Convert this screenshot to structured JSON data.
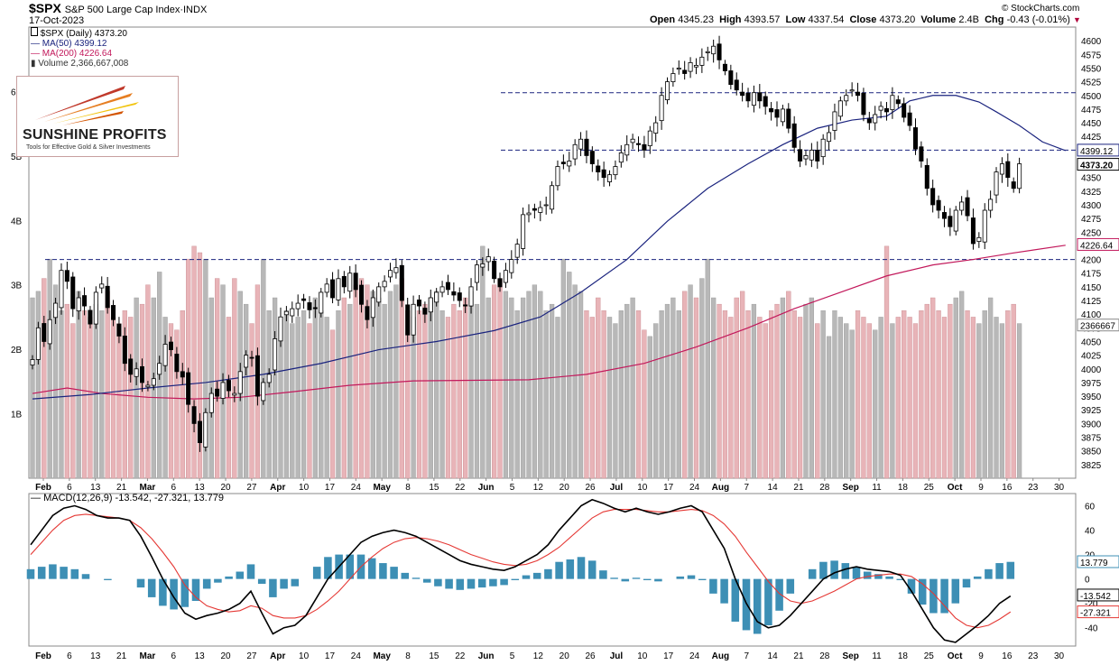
{
  "header": {
    "symbol": "$SPX",
    "name": "S&P 500 Large Cap Index",
    "exchange": "INDX",
    "date": "17-Oct-2023",
    "copyright": "© StockCharts.com",
    "open_label": "Open",
    "open": "4345.23",
    "high_label": "High",
    "high": "4393.57",
    "low_label": "Low",
    "low": "4337.54",
    "close_label": "Close",
    "close": "4373.20",
    "volume_label": "Volume",
    "volume": "2.4B",
    "chg_label": "Chg",
    "chg": "-0.43 (-0.01%)"
  },
  "legend": {
    "price": "$SPX (Daily) 4373.20",
    "ma50": "MA(50) 4399.12",
    "ma200": "MA(200) 4226.64",
    "volume": "Volume 2,366,667,008",
    "macd": "MACD(12,26,9) -13.542, -27.321, 13.779"
  },
  "logo": {
    "name": "SUNSHINE PROFITS",
    "tagline": "Tools for Effective Gold & Silver Investments"
  },
  "colors": {
    "up": "#ffffff",
    "down": "#000000",
    "ma50": "#1a237e",
    "ma200": "#c2185b",
    "vol_up": "#b8b8b8",
    "vol_down": "#e8b4b8",
    "macd_line": "#000000",
    "signal_line": "#e53935",
    "histogram": "#3d8fb5",
    "hline": "#1a237e"
  },
  "chart_data": [
    {
      "type": "candlestick",
      "title": "$SPX S&P 500 Large Cap Index INDX",
      "ylim": [
        3800,
        4625
      ],
      "y_ticks": [
        3825,
        3850,
        3875,
        3900,
        3925,
        3950,
        3975,
        4000,
        4025,
        4050,
        4075,
        4100,
        4125,
        4150,
        4175,
        4200,
        4225,
        4250,
        4275,
        4300,
        4325,
        4350,
        4375,
        4400,
        4425,
        4450,
        4475,
        4500,
        4525,
        4550,
        4575,
        4600
      ],
      "x_labels": [
        "Feb",
        "6",
        "13",
        "21",
        "Mar",
        "6",
        "13",
        "20",
        "27",
        "Apr",
        "10",
        "17",
        "24",
        "May",
        "8",
        "15",
        "22",
        "Jun",
        "5",
        "12",
        "20",
        "26",
        "Jul",
        "10",
        "17",
        "24",
        "Aug",
        "7",
        "14",
        "21",
        "28",
        "Sep",
        "11",
        "18",
        "25",
        "Oct",
        "9",
        "16",
        "23",
        "30"
      ],
      "closes": [
        4017,
        4075,
        4050,
        4090,
        4120,
        4180,
        4160,
        4110,
        4130,
        4115,
        4082,
        4140,
        4155,
        4112,
        4090,
        4060,
        4010,
        3990,
        4000,
        3975,
        3970,
        3982,
        4010,
        4045,
        4035,
        3995,
        3985,
        3935,
        3900,
        3865,
        3920,
        3955,
        3950,
        3975,
        3960,
        3955,
        3995,
        4025,
        4020,
        3950,
        3975,
        3990,
        4055,
        4095,
        4105,
        4110,
        4120,
        4125,
        4108,
        4110,
        4140,
        4155,
        4130,
        4165,
        4150,
        4175,
        4145,
        4118,
        4090,
        4130,
        4150,
        4160,
        4180,
        4185,
        4125,
        4062,
        4118,
        4115,
        4100,
        4130,
        4140,
        4150,
        4145,
        4135,
        4125,
        4115,
        4150,
        4190,
        4192,
        4205,
        4165,
        4150,
        4180,
        4200,
        4228,
        4282,
        4285,
        4290,
        4295,
        4300,
        4335,
        4370,
        4375,
        4380,
        4410,
        4420,
        4390,
        4375,
        4360,
        4350,
        4355,
        4370,
        4395,
        4410,
        4420,
        4410,
        4400,
        4435,
        4450,
        4500,
        4525,
        4540,
        4550,
        4540,
        4560,
        4555,
        4570,
        4580,
        4590,
        4565,
        4545,
        4520,
        4510,
        4500,
        4490,
        4505,
        4490,
        4480,
        4470,
        4460,
        4475,
        4440,
        4405,
        4380,
        4390,
        4400,
        4380,
        4420,
        4432,
        4470,
        4490,
        4500,
        4510,
        4500,
        4465,
        4450,
        4465,
        4480,
        4470,
        4500,
        4485,
        4460,
        4445,
        4402,
        4380,
        4330,
        4300,
        4290,
        4275,
        4260,
        4290,
        4305,
        4280,
        4229,
        4240,
        4290,
        4310,
        4360,
        4375,
        4350,
        4330,
        4375
      ],
      "volume_ylim": [
        0,
        7000000000
      ],
      "volume_ticks": [
        "1B",
        "2B",
        "3B",
        "4B",
        "5B",
        "6B"
      ],
      "volume_last": "2366667",
      "volumes_billion": [
        2.8,
        2.9,
        3.1,
        3.4,
        3.0,
        2.6,
        2.7,
        2.4,
        2.9,
        2.6,
        2.5,
        2.7,
        2.6,
        2.9,
        2.5,
        2.4,
        2.6,
        2.5,
        2.8,
        2.7,
        3.0,
        2.8,
        3.2,
        2.5,
        2.4,
        2.3,
        2.6,
        3.4,
        3.6,
        3.5,
        3.4,
        2.8,
        3.1,
        3.0,
        2.5,
        3.1,
        2.9,
        2.7,
        2.4,
        3.0,
        3.4,
        2.6,
        2.8,
        2.5,
        2.6,
        2.4,
        2.5,
        2.6,
        2.4,
        2.8,
        2.6,
        2.5,
        2.3,
        2.6,
        2.8,
        2.7,
        3.0,
        3.1,
        3.0,
        2.9,
        2.8,
        2.7,
        2.9,
        3.0,
        3.1,
        2.6,
        2.5,
        2.6,
        2.7,
        2.8,
        2.9,
        2.6,
        2.5,
        2.7,
        2.6,
        2.8,
        2.9,
        2.7,
        3.6,
        2.8,
        3.0,
        3.1,
        2.9,
        2.8,
        2.6,
        2.8,
        2.9,
        3.0,
        2.9,
        2.6,
        2.7,
        2.5,
        3.4,
        3.2,
        3.0,
        2.9,
        2.6,
        2.5,
        2.8,
        2.6,
        2.5,
        2.4,
        2.6,
        2.7,
        2.8,
        2.6,
        2.3,
        2.2,
        2.4,
        2.6,
        2.7,
        2.8,
        2.6,
        2.9,
        3.0,
        2.8,
        3.1,
        3.4,
        2.8,
        2.7,
        2.6,
        2.5,
        2.8,
        2.9,
        2.6,
        2.7,
        2.5,
        2.4,
        2.6,
        2.7,
        2.8,
        2.9,
        2.6,
        2.5,
        2.7,
        2.8,
        2.4,
        2.6,
        2.2,
        2.6,
        2.5,
        2.4,
        2.3,
        2.6,
        2.5,
        2.4,
        2.3,
        2.5,
        3.6,
        2.4,
        2.5,
        2.6,
        2.5,
        2.4,
        2.6,
        2.7,
        2.8,
        2.6,
        2.5,
        2.7,
        2.8,
        2.9,
        2.6,
        2.5,
        2.4,
        2.6,
        2.8,
        2.5,
        2.4,
        2.6,
        2.7,
        2.4
      ],
      "ma50_points": [
        [
          0,
          3945
        ],
        [
          10,
          3953
        ],
        [
          20,
          3965
        ],
        [
          30,
          3975
        ],
        [
          40,
          3990
        ],
        [
          50,
          4010
        ],
        [
          60,
          4035
        ],
        [
          70,
          4050
        ],
        [
          80,
          4070
        ],
        [
          88,
          4095
        ],
        [
          95,
          4140
        ],
        [
          103,
          4200
        ],
        [
          110,
          4270
        ],
        [
          117,
          4330
        ],
        [
          124,
          4375
        ],
        [
          130,
          4410
        ],
        [
          136,
          4440
        ],
        [
          142,
          4455
        ],
        [
          148,
          4462
        ],
        [
          152,
          4490
        ],
        [
          156,
          4500
        ],
        [
          160,
          4500
        ],
        [
          164,
          4488
        ],
        [
          167,
          4470
        ],
        [
          171,
          4445
        ],
        [
          175,
          4415
        ],
        [
          179,
          4399
        ]
      ],
      "ma200_points": [
        [
          0,
          3955
        ],
        [
          6,
          3965
        ],
        [
          12,
          3955
        ],
        [
          20,
          3948
        ],
        [
          28,
          3945
        ],
        [
          36,
          3948
        ],
        [
          45,
          3958
        ],
        [
          55,
          3970
        ],
        [
          66,
          3978
        ],
        [
          76,
          3979
        ],
        [
          86,
          3980
        ],
        [
          96,
          3990
        ],
        [
          106,
          4010
        ],
        [
          115,
          4040
        ],
        [
          124,
          4075
        ],
        [
          132,
          4110
        ],
        [
          140,
          4140
        ],
        [
          148,
          4170
        ],
        [
          156,
          4190
        ],
        [
          163,
          4200
        ],
        [
          170,
          4212
        ],
        [
          179,
          4226
        ]
      ],
      "hlines": [
        4505,
        4400,
        4200
      ],
      "price_labels": [
        "4399.12",
        "4373.20",
        "4226.64"
      ]
    },
    {
      "type": "macd",
      "title": "MACD(12,26,9) -13.542, -27.321, 13.779",
      "ylim": [
        -55,
        70
      ],
      "y_ticks": [
        -40,
        -20,
        0,
        20,
        40,
        60
      ],
      "macd_line": [
        28,
        40,
        52,
        58,
        60,
        57,
        52,
        50,
        50,
        48,
        35,
        18,
        0,
        -15,
        -28,
        -33,
        -30,
        -28,
        -25,
        -20,
        -10,
        -28,
        -45,
        -40,
        -38,
        -30,
        -15,
        0,
        10,
        20,
        30,
        35,
        38,
        40,
        38,
        35,
        30,
        25,
        20,
        15,
        12,
        10,
        8,
        7,
        10,
        15,
        20,
        28,
        40,
        50,
        60,
        65,
        62,
        58,
        55,
        58,
        55,
        53,
        55,
        58,
        60,
        55,
        40,
        25,
        0,
        -20,
        -35,
        -40,
        -38,
        -30,
        -20,
        -10,
        0,
        5,
        8,
        10,
        8,
        7,
        6,
        3,
        -10,
        -25,
        -40,
        -50,
        -52,
        -45,
        -38,
        -30,
        -20,
        -14
      ],
      "signal_line": [
        20,
        30,
        40,
        48,
        52,
        53,
        52,
        51,
        50,
        48,
        42,
        33,
        22,
        10,
        -5,
        -15,
        -22,
        -25,
        -27,
        -26,
        -22,
        -24,
        -30,
        -32,
        -32,
        -30,
        -25,
        -18,
        -10,
        0,
        10,
        18,
        25,
        30,
        33,
        34,
        33,
        31,
        28,
        24,
        20,
        17,
        14,
        12,
        11,
        12,
        15,
        20,
        26,
        34,
        42,
        50,
        55,
        57,
        57,
        57,
        56,
        55,
        55,
        56,
        57,
        56,
        52,
        45,
        35,
        22,
        10,
        -2,
        -12,
        -18,
        -20,
        -18,
        -14,
        -10,
        -5,
        0,
        2,
        3,
        4,
        4,
        2,
        -4,
        -12,
        -22,
        -32,
        -38,
        -40,
        -38,
        -33,
        -27
      ],
      "histogram": [
        8,
        10,
        12,
        10,
        8,
        4,
        0,
        -1,
        0,
        0,
        -7,
        -15,
        -22,
        -25,
        -23,
        -18,
        -8,
        -3,
        2,
        6,
        12,
        -4,
        -15,
        -8,
        -6,
        0,
        10,
        18,
        20,
        20,
        20,
        17,
        13,
        10,
        5,
        1,
        -3,
        -6,
        -8,
        -9,
        -8,
        -7,
        -6,
        -5,
        -1,
        3,
        5,
        8,
        14,
        16,
        18,
        15,
        7,
        1,
        -2,
        1,
        -1,
        -2,
        0,
        2,
        3,
        -1,
        -12,
        -20,
        -35,
        -42,
        -45,
        -38,
        -26,
        -12,
        0,
        8,
        14,
        15,
        13,
        10,
        6,
        4,
        2,
        -1,
        -12,
        -21,
        -28,
        -28,
        -20,
        -7,
        2,
        8,
        13,
        14
      ],
      "macd_labels": [
        "13.779",
        "-13.542",
        "-27.321"
      ]
    }
  ]
}
